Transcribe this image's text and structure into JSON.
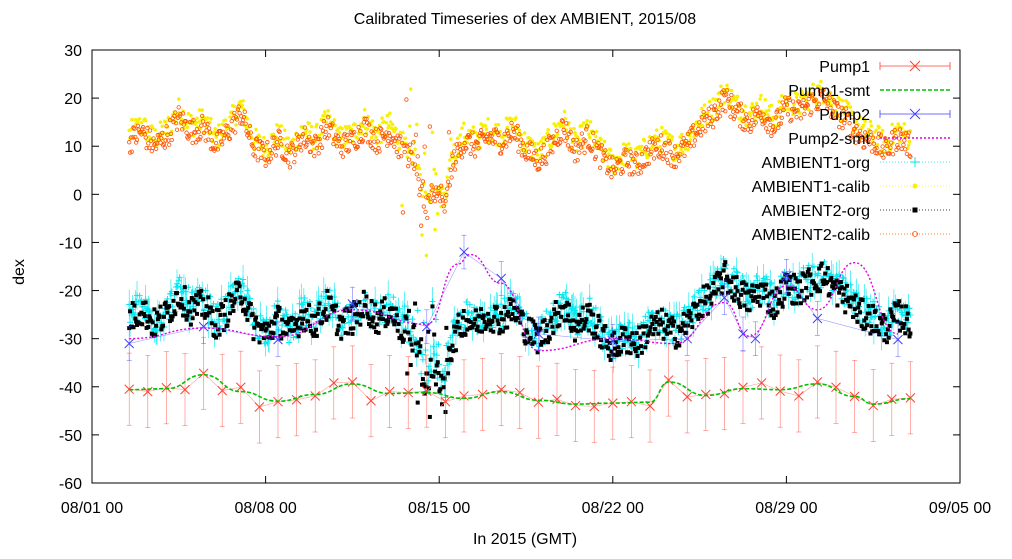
{
  "chart_data": {
    "type": "scatter",
    "title": "Calibrated Timeseries of dex AMBIENT, 2015/08",
    "xlabel": "In 2015 (GMT)",
    "ylabel": "dex",
    "ylim": [
      -60,
      30
    ],
    "yticks": [
      -60,
      -50,
      -40,
      -30,
      -20,
      -10,
      0,
      10,
      20,
      30
    ],
    "xlim": [
      "2015-08-01 00:00",
      "2015-09-05 00:00"
    ],
    "xticks": [
      {
        "t": "2015-08-01 00:00",
        "label": "08/01 00"
      },
      {
        "t": "2015-08-08 00:00",
        "label": "08/08 00"
      },
      {
        "t": "2015-08-15 00:00",
        "label": "08/15 00"
      },
      {
        "t": "2015-08-22 00:00",
        "label": "08/22 00"
      },
      {
        "t": "2015-08-29 00:00",
        "label": "08/29 00"
      },
      {
        "t": "2015-09-05 00:00",
        "label": "09/05 00"
      }
    ],
    "grid": false,
    "legend_position": "top-right",
    "series": [
      {
        "name": "Pump1",
        "color": "#ff4030",
        "marker": "x",
        "errorbars": true,
        "points": [
          [
            "2015-08-02 12:00",
            -40.5
          ],
          [
            "2015-08-03 06:00",
            -41.0
          ],
          [
            "2015-08-04 00:00",
            -40.2
          ],
          [
            "2015-08-04 18:00",
            -40.6
          ],
          [
            "2015-08-05 12:00",
            -37.2
          ],
          [
            "2015-08-06 06:00",
            -40.8
          ],
          [
            "2015-08-07 00:00",
            -40.1
          ],
          [
            "2015-08-07 18:00",
            -44.2
          ],
          [
            "2015-08-08 12:00",
            -43.1
          ],
          [
            "2015-08-09 06:00",
            -42.7
          ],
          [
            "2015-08-10 00:00",
            -41.9
          ],
          [
            "2015-08-10 18:00",
            -39.2
          ],
          [
            "2015-08-11 12:00",
            -39.0
          ],
          [
            "2015-08-12 06:00",
            -42.9
          ],
          [
            "2015-08-13 00:00",
            -41.0
          ],
          [
            "2015-08-13 18:00",
            -41.2
          ],
          [
            "2015-08-14 12:00",
            -40.9
          ],
          [
            "2015-08-15 06:00",
            -43.1
          ],
          [
            "2015-08-16 00:00",
            -41.9
          ],
          [
            "2015-08-16 18:00",
            -41.6
          ],
          [
            "2015-08-17 12:00",
            -40.6
          ],
          [
            "2015-08-18 06:00",
            -41.2
          ],
          [
            "2015-08-19 00:00",
            -43.2
          ],
          [
            "2015-08-19 18:00",
            -42.6
          ],
          [
            "2015-08-20 12:00",
            -43.9
          ],
          [
            "2015-08-21 06:00",
            -44.1
          ],
          [
            "2015-08-22 00:00",
            -43.4
          ],
          [
            "2015-08-22 18:00",
            -43.1
          ],
          [
            "2015-08-23 12:00",
            -44.0
          ],
          [
            "2015-08-24 06:00",
            -38.6
          ],
          [
            "2015-08-25 00:00",
            -42.1
          ],
          [
            "2015-08-25 18:00",
            -41.6
          ],
          [
            "2015-08-26 12:00",
            -41.4
          ],
          [
            "2015-08-27 06:00",
            -40.1
          ],
          [
            "2015-08-28 00:00",
            -39.2
          ],
          [
            "2015-08-28 18:00",
            -40.9
          ],
          [
            "2015-08-29 12:00",
            -41.9
          ],
          [
            "2015-08-30 06:00",
            -39.0
          ],
          [
            "2015-08-31 00:00",
            -40.1
          ],
          [
            "2015-08-31 18:00",
            -42.0
          ],
          [
            "2015-09-01 12:00",
            -43.9
          ],
          [
            "2015-09-02 06:00",
            -42.6
          ],
          [
            "2015-09-03 00:00",
            -42.3
          ]
        ]
      },
      {
        "name": "Pump1-smt",
        "color": "#00c000",
        "style": "dashed-line",
        "points": [
          [
            "2015-08-02 12:00",
            -40.6
          ],
          [
            "2015-08-04 00:00",
            -40.4
          ],
          [
            "2015-08-05 12:00",
            -37.5
          ],
          [
            "2015-08-07 00:00",
            -41.0
          ],
          [
            "2015-08-08 12:00",
            -43.0
          ],
          [
            "2015-08-10 00:00",
            -41.6
          ],
          [
            "2015-08-11 12:00",
            -39.4
          ],
          [
            "2015-08-13 00:00",
            -41.4
          ],
          [
            "2015-08-14 12:00",
            -41.2
          ],
          [
            "2015-08-16 00:00",
            -42.4
          ],
          [
            "2015-08-17 12:00",
            -41.0
          ],
          [
            "2015-08-19 00:00",
            -42.8
          ],
          [
            "2015-08-20 12:00",
            -43.6
          ],
          [
            "2015-08-22 00:00",
            -43.4
          ],
          [
            "2015-08-23 12:00",
            -43.2
          ],
          [
            "2015-08-24 06:00",
            -39.0
          ],
          [
            "2015-08-25 18:00",
            -41.8
          ],
          [
            "2015-08-27 06:00",
            -40.4
          ],
          [
            "2015-08-28 18:00",
            -40.6
          ],
          [
            "2015-08-30 06:00",
            -39.4
          ],
          [
            "2015-08-31 18:00",
            -42.0
          ],
          [
            "2015-09-01 12:00",
            -43.6
          ],
          [
            "2015-09-03 00:00",
            -42.5
          ]
        ]
      },
      {
        "name": "Pump2",
        "color": "#4040ff",
        "marker": "x",
        "errorbars": true,
        "points": [
          [
            "2015-08-02 12:00",
            -31.0
          ],
          [
            "2015-08-05 12:00",
            -27.5
          ],
          [
            "2015-08-08 12:00",
            -30.2
          ],
          [
            "2015-08-11 12:00",
            -22.8
          ],
          [
            "2015-08-14 12:00",
            -27.5
          ],
          [
            "2015-08-16 00:00",
            -12.0
          ],
          [
            "2015-08-17 12:00",
            -17.5
          ],
          [
            "2015-08-19 00:00",
            -29.0
          ],
          [
            "2015-08-22 00:00",
            -30.5
          ],
          [
            "2015-08-25 00:00",
            -30.0
          ],
          [
            "2015-08-26 12:00",
            -21.5
          ],
          [
            "2015-08-27 06:00",
            -29.0
          ],
          [
            "2015-08-27 18:00",
            -30.0
          ],
          [
            "2015-08-29 00:00",
            -17.0
          ],
          [
            "2015-08-30 06:00",
            -25.8
          ],
          [
            "2015-09-02 12:00",
            -30.2
          ]
        ]
      },
      {
        "name": "Pump2-smt",
        "color": "#e000e0",
        "style": "dotted-line",
        "points": [
          [
            "2015-08-02 12:00",
            -30.0
          ],
          [
            "2015-08-05 12:00",
            -27.8
          ],
          [
            "2015-08-08 12:00",
            -29.6
          ],
          [
            "2015-08-11 12:00",
            -24.0
          ],
          [
            "2015-08-14 12:00",
            -27.0
          ],
          [
            "2015-08-15 18:00",
            -14.5
          ],
          [
            "2015-08-16 06:00",
            -12.5
          ],
          [
            "2015-08-17 12:00",
            -18.5
          ],
          [
            "2015-08-19 00:00",
            -32.5
          ],
          [
            "2015-08-22 00:00",
            -30.0
          ],
          [
            "2015-08-24 12:00",
            -31.0
          ],
          [
            "2015-08-26 12:00",
            -22.5
          ],
          [
            "2015-08-27 12:00",
            -29.5
          ],
          [
            "2015-08-29 00:00",
            -19.0
          ],
          [
            "2015-08-30 06:00",
            -24.0
          ],
          [
            "2015-08-31 18:00",
            -14.2
          ],
          [
            "2015-09-02 12:00",
            -29.0
          ]
        ]
      },
      {
        "name": "AMBIENT1-org",
        "color": "#00e8f0",
        "marker": "+",
        "style": "dense-band",
        "offset": -36.2,
        "note_base": "shared ambient profile"
      },
      {
        "name": "AMBIENT1-calib",
        "color": "#f8f000",
        "marker": "dot",
        "style": "dense-band",
        "offset": 1.5
      },
      {
        "name": "AMBIENT2-org",
        "color": "#000000",
        "marker": "square",
        "style": "dense-band",
        "offset": -37.0
      },
      {
        "name": "AMBIENT2-calib",
        "color": "#ff5000",
        "marker": "circle",
        "style": "dense-band",
        "offset": 0
      }
    ],
    "ambient_profile": [
      [
        "2015-08-02 12:00",
        11
      ],
      [
        "2015-08-03 00:00",
        13
      ],
      [
        "2015-08-03 12:00",
        10
      ],
      [
        "2015-08-04 00:00",
        12
      ],
      [
        "2015-08-04 12:00",
        16
      ],
      [
        "2015-08-05 00:00",
        13
      ],
      [
        "2015-08-05 12:00",
        14
      ],
      [
        "2015-08-06 00:00",
        10
      ],
      [
        "2015-08-06 12:00",
        13
      ],
      [
        "2015-08-07 00:00",
        17
      ],
      [
        "2015-08-07 12:00",
        10
      ],
      [
        "2015-08-08 00:00",
        8
      ],
      [
        "2015-08-08 12:00",
        11
      ],
      [
        "2015-08-09 00:00",
        8
      ],
      [
        "2015-08-09 12:00",
        12
      ],
      [
        "2015-08-10 00:00",
        10
      ],
      [
        "2015-08-10 12:00",
        14
      ],
      [
        "2015-08-11 00:00",
        10
      ],
      [
        "2015-08-11 12:00",
        11
      ],
      [
        "2015-08-12 00:00",
        14
      ],
      [
        "2015-08-12 12:00",
        11
      ],
      [
        "2015-08-13 00:00",
        13
      ],
      [
        "2015-08-13 12:00",
        9
      ],
      [
        "2015-08-14 00:00",
        7
      ],
      [
        "2015-08-14 06:00",
        2
      ],
      [
        "2015-08-14 12:00",
        -3
      ],
      [
        "2015-08-14 18:00",
        2
      ],
      [
        "2015-08-15 00:00",
        -1
      ],
      [
        "2015-08-15 06:00",
        -3
      ],
      [
        "2015-08-15 12:00",
        6
      ],
      [
        "2015-08-16 00:00",
        11
      ],
      [
        "2015-08-16 12:00",
        10
      ],
      [
        "2015-08-17 00:00",
        12
      ],
      [
        "2015-08-17 12:00",
        11
      ],
      [
        "2015-08-18 00:00",
        13
      ],
      [
        "2015-08-18 12:00",
        9
      ],
      [
        "2015-08-19 00:00",
        7
      ],
      [
        "2015-08-19 12:00",
        10
      ],
      [
        "2015-08-20 00:00",
        14
      ],
      [
        "2015-08-20 12:00",
        9
      ],
      [
        "2015-08-21 00:00",
        12
      ],
      [
        "2015-08-21 12:00",
        8
      ],
      [
        "2015-08-22 00:00",
        5
      ],
      [
        "2015-08-22 12:00",
        7
      ],
      [
        "2015-08-23 00:00",
        6
      ],
      [
        "2015-08-23 12:00",
        9
      ],
      [
        "2015-08-24 00:00",
        10
      ],
      [
        "2015-08-24 12:00",
        8
      ],
      [
        "2015-08-25 00:00",
        10
      ],
      [
        "2015-08-25 12:00",
        14
      ],
      [
        "2015-08-26 00:00",
        16
      ],
      [
        "2015-08-26 12:00",
        20
      ],
      [
        "2015-08-27 00:00",
        17
      ],
      [
        "2015-08-27 12:00",
        15
      ],
      [
        "2015-08-28 00:00",
        17
      ],
      [
        "2015-08-28 12:00",
        14
      ],
      [
        "2015-08-29 00:00",
        18
      ],
      [
        "2015-08-29 12:00",
        17
      ],
      [
        "2015-08-30 00:00",
        19
      ],
      [
        "2015-08-30 12:00",
        20
      ],
      [
        "2015-08-31 00:00",
        17
      ],
      [
        "2015-08-31 12:00",
        15
      ],
      [
        "2015-09-01 00:00",
        12
      ],
      [
        "2015-09-01 12:00",
        11
      ],
      [
        "2015-09-02 00:00",
        9
      ],
      [
        "2015-09-02 12:00",
        12
      ],
      [
        "2015-09-03 00:00",
        10
      ]
    ]
  }
}
